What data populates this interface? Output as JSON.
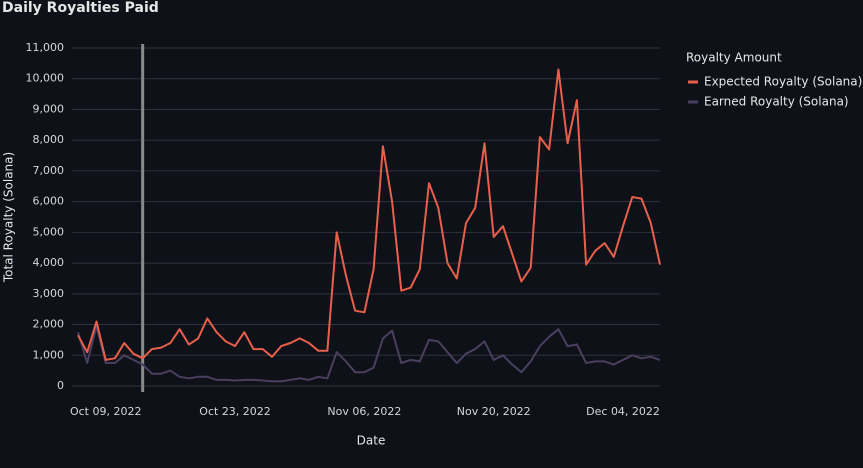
{
  "chart_data": {
    "type": "line",
    "title": "Daily Royalties Paid",
    "x_label": "Date",
    "y_label": "Total Royalty (Solana)",
    "legend_title": "Royalty Amount",
    "legend": "right",
    "grid": true,
    "rule_x": "2022-10-13",
    "rule_color": "#8a8a8a",
    "xlim": [
      "2022-10-06",
      "2022-12-08"
    ],
    "xticks": [
      {
        "value": "2022-10-09",
        "label": "Oct 09, 2022"
      },
      {
        "value": "2022-10-23",
        "label": "Oct 23, 2022"
      },
      {
        "value": "2022-11-06",
        "label": "Nov 06, 2022"
      },
      {
        "value": "2022-11-20",
        "label": "Nov 20, 2022"
      },
      {
        "value": "2022-12-04",
        "label": "Dec 04, 2022"
      }
    ],
    "ylim": [
      0,
      11000
    ],
    "yticks": [
      0,
      {
        "value": 1000,
        "label": "1,000"
      },
      {
        "value": 2000,
        "label": "2,000"
      },
      {
        "value": 3000,
        "label": "3,000"
      },
      {
        "value": 4000,
        "label": "4,000"
      },
      {
        "value": 5000,
        "label": "5,000"
      },
      {
        "value": 6000,
        "label": "6,000"
      },
      {
        "value": 7000,
        "label": "7,000"
      },
      {
        "value": 8000,
        "label": "8,000"
      },
      {
        "value": 9000,
        "label": "9,000"
      },
      {
        "value": 10000,
        "label": "10,000"
      },
      {
        "value": 11000,
        "label": "11,000"
      }
    ],
    "x": [
      "2022-10-06",
      "2022-10-07",
      "2022-10-08",
      "2022-10-09",
      "2022-10-10",
      "2022-10-11",
      "2022-10-12",
      "2022-10-13",
      "2022-10-14",
      "2022-10-15",
      "2022-10-16",
      "2022-10-17",
      "2022-10-18",
      "2022-10-19",
      "2022-10-20",
      "2022-10-21",
      "2022-10-22",
      "2022-10-23",
      "2022-10-24",
      "2022-10-25",
      "2022-10-26",
      "2022-10-27",
      "2022-10-28",
      "2022-10-29",
      "2022-10-30",
      "2022-10-31",
      "2022-11-01",
      "2022-11-02",
      "2022-11-03",
      "2022-11-04",
      "2022-11-05",
      "2022-11-06",
      "2022-11-07",
      "2022-11-08",
      "2022-11-09",
      "2022-11-10",
      "2022-11-11",
      "2022-11-12",
      "2022-11-13",
      "2022-11-14",
      "2022-11-15",
      "2022-11-16",
      "2022-11-17",
      "2022-11-18",
      "2022-11-19",
      "2022-11-20",
      "2022-11-21",
      "2022-11-22",
      "2022-11-23",
      "2022-11-24",
      "2022-11-25",
      "2022-11-26",
      "2022-11-27",
      "2022-11-28",
      "2022-11-29",
      "2022-11-30",
      "2022-12-01",
      "2022-12-02",
      "2022-12-03",
      "2022-12-04",
      "2022-12-05",
      "2022-12-06",
      "2022-12-07",
      "2022-12-08"
    ],
    "series": [
      {
        "name": "Expected Royalty (Solana)",
        "color": "#e8604c",
        "values": [
          1650,
          1100,
          2100,
          850,
          900,
          1400,
          1050,
          900,
          1200,
          1250,
          1400,
          1850,
          1350,
          1550,
          2200,
          1750,
          1450,
          1300,
          1750,
          1200,
          1200,
          950,
          1300,
          1400,
          1550,
          1400,
          1150,
          1150,
          5000,
          3600,
          2450,
          2400,
          3800,
          7800,
          6000,
          3100,
          3200,
          3800,
          6600,
          5800,
          4000,
          3500,
          5300,
          5800,
          7900,
          4850,
          5200,
          4300,
          3400,
          3850,
          8100,
          7700,
          10300,
          7900,
          9300,
          3950,
          4400,
          4650,
          4200,
          5200,
          6150,
          6100,
          5300,
          3950
        ]
      },
      {
        "name": "Earned Royalty (Solana)",
        "color": "#4b3f60",
        "values": [
          1750,
          750,
          1950,
          750,
          750,
          1000,
          850,
          700,
          400,
          400,
          500,
          300,
          250,
          300,
          300,
          200,
          200,
          180,
          200,
          200,
          180,
          150,
          150,
          200,
          250,
          200,
          300,
          250,
          1100,
          800,
          450,
          450,
          600,
          1550,
          1800,
          750,
          850,
          800,
          1500,
          1450,
          1100,
          750,
          1050,
          1200,
          1450,
          850,
          1000,
          700,
          450,
          800,
          1300,
          1600,
          1850,
          1300,
          1350,
          750,
          800,
          800,
          700,
          850,
          1000,
          900,
          950,
          850
        ]
      }
    ]
  }
}
